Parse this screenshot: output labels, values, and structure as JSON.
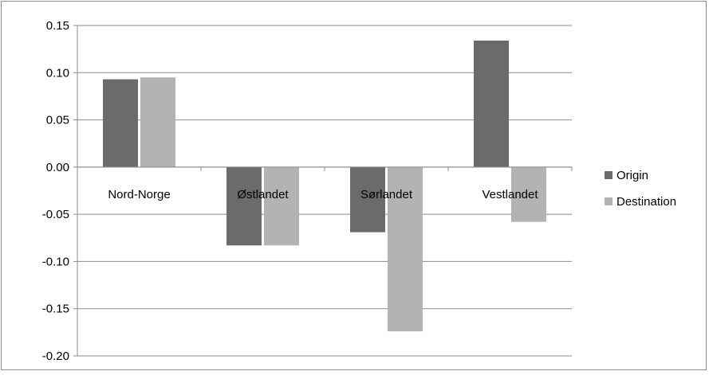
{
  "chart_data": {
    "type": "bar",
    "categories": [
      "Nord-Norge",
      "Østlandet",
      "Sørlandet",
      "Vestlandet"
    ],
    "series": [
      {
        "name": "Origin",
        "color": "#6b6b6b",
        "values": [
          0.093,
          -0.083,
          -0.069,
          0.134
        ]
      },
      {
        "name": "Destination",
        "color": "#b3b3b3",
        "values": [
          0.095,
          -0.083,
          -0.174,
          -0.058
        ]
      }
    ],
    "yticks": [
      "0.15",
      "0.10",
      "0.05",
      "0.00",
      "-0.05",
      "-0.10",
      "-0.15",
      "-0.20"
    ],
    "ylim": [
      -0.2,
      0.15
    ],
    "grid": true,
    "legend": "right",
    "title": "",
    "xlabel": "",
    "ylabel": ""
  }
}
